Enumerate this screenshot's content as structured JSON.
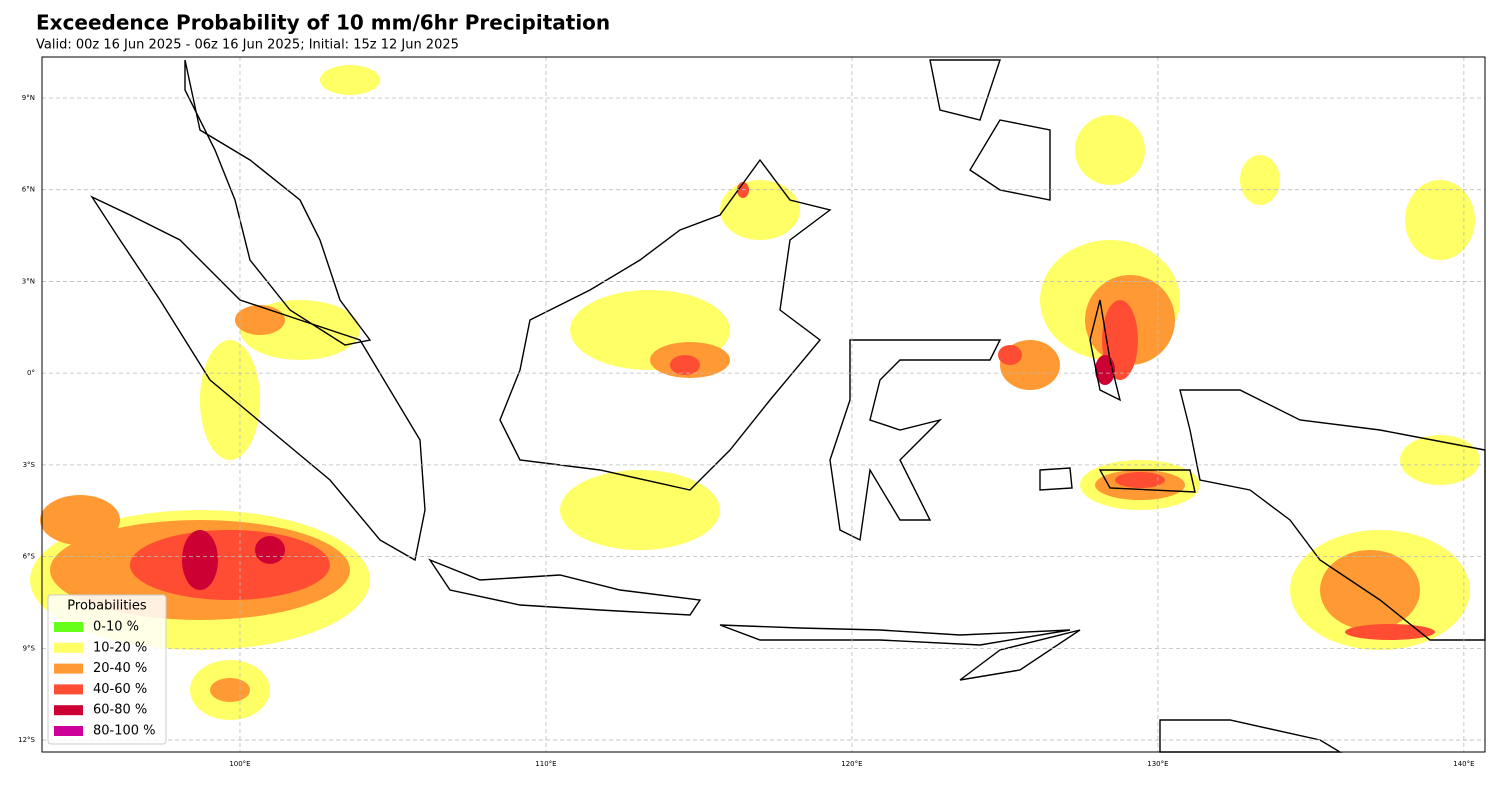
{
  "title": "Exceedence Probability of 10 mm/6hr Precipitation",
  "subtitle": "Valid: 00z 16 Jun 2025 - 06z 16 Jun 2025; Initial: 15z 12 Jun 2025",
  "map": {
    "lon_range": [
      93.53,
      140.69
    ],
    "lat_range": [
      -12.39,
      10.34
    ],
    "lon_ticks": [
      {
        "value": 100,
        "label": "100°E"
      },
      {
        "value": 110,
        "label": "110°E"
      },
      {
        "value": 120,
        "label": "120°E"
      },
      {
        "value": 130,
        "label": "130°E"
      },
      {
        "value": 140,
        "label": "140°E"
      }
    ],
    "lat_ticks": [
      {
        "value": 9,
        "label": "9°N"
      },
      {
        "value": 6,
        "label": "6°N"
      },
      {
        "value": 3,
        "label": "3°N"
      },
      {
        "value": 0,
        "label": "0°"
      },
      {
        "value": -3,
        "label": "3°S"
      },
      {
        "value": -6,
        "label": "6°S"
      },
      {
        "value": -9,
        "label": "9°S"
      },
      {
        "value": -12,
        "label": "12°S"
      }
    ]
  },
  "legend": {
    "title": "Probabilities",
    "entries": [
      {
        "label": "0-10 %",
        "color": "#66ff1a"
      },
      {
        "label": "10-20 %",
        "color": "#ffff66"
      },
      {
        "label": "20-40 %",
        "color": "#ff9933"
      },
      {
        "label": "40-60 %",
        "color": "#ff4d33"
      },
      {
        "label": "60-80 %",
        "color": "#cc0033"
      },
      {
        "label": "80-100 %",
        "color": "#cc0099"
      }
    ]
  }
}
